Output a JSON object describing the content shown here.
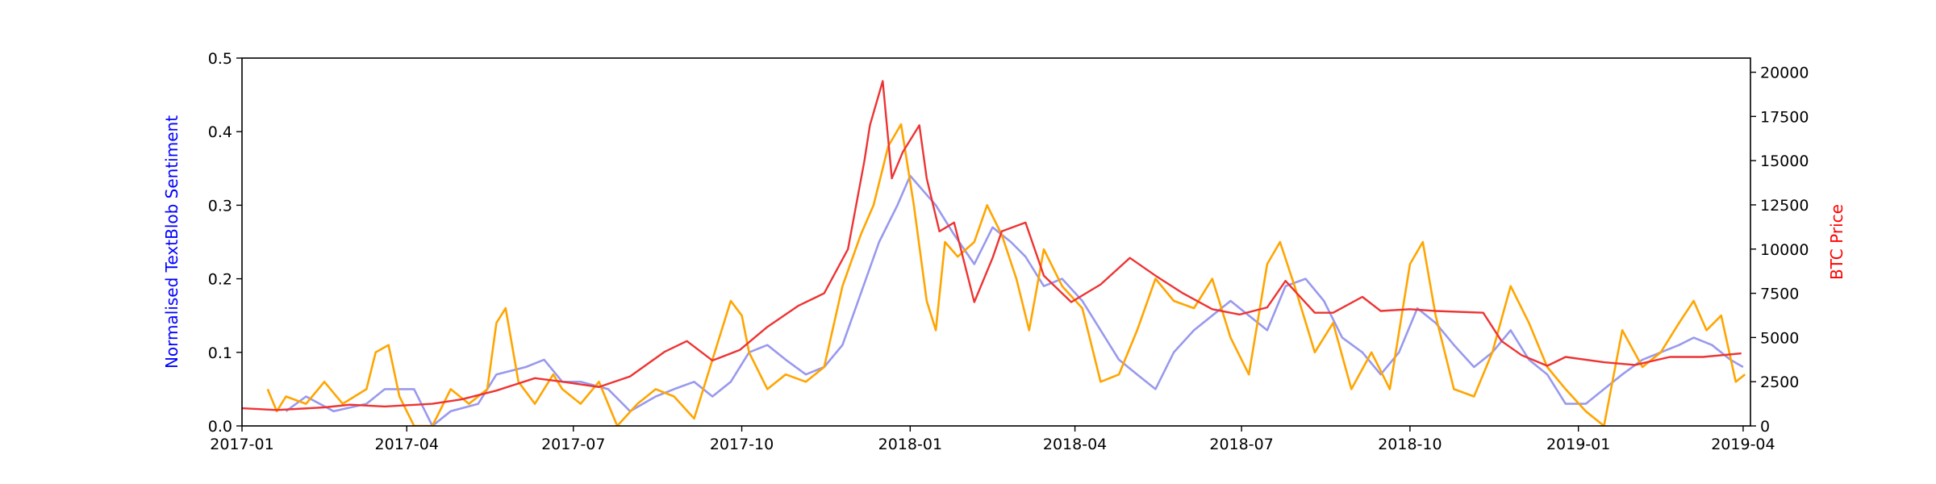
{
  "chart_data": {
    "type": "line",
    "title": "",
    "xlabel": "",
    "ylabel_left": "Normalised TextBlob Sentiment",
    "ylabel_right": "BTC Price",
    "x_range": [
      "2017-01-01",
      "2019-04-05"
    ],
    "ylim_left": [
      0,
      0.5
    ],
    "ylim_right": [
      0,
      20800
    ],
    "x_ticks": [
      "2017-01",
      "2017-04",
      "2017-07",
      "2017-10",
      "2018-01",
      "2018-04",
      "2018-07",
      "2018-10",
      "2019-01",
      "2019-04"
    ],
    "y_ticks_left": [
      "0.0",
      "0.1",
      "0.2",
      "0.3",
      "0.4",
      "0.5"
    ],
    "y_ticks_right": [
      "0",
      "2500",
      "5000",
      "7500",
      "10000",
      "12500",
      "15000",
      "17500",
      "20000"
    ],
    "grid": false,
    "colors": {
      "left_label": "#0000ff",
      "right_label": "#ff0000",
      "sentiment_smooth": "#9999ee",
      "sentiment_raw": "#ffa500",
      "btc_price": "#ee3333"
    },
    "series": [
      {
        "axis": "left",
        "color": "#9999ee",
        "points": [
          [
            "2017-01-25",
            0.02
          ],
          [
            "2017-02-05",
            0.04
          ],
          [
            "2017-02-20",
            0.02
          ],
          [
            "2017-03-10",
            0.03
          ],
          [
            "2017-03-20",
            0.05
          ],
          [
            "2017-04-05",
            0.05
          ],
          [
            "2017-04-15",
            0.0
          ],
          [
            "2017-04-25",
            0.02
          ],
          [
            "2017-05-10",
            0.03
          ],
          [
            "2017-05-20",
            0.07
          ],
          [
            "2017-06-05",
            0.08
          ],
          [
            "2017-06-15",
            0.09
          ],
          [
            "2017-06-25",
            0.06
          ],
          [
            "2017-07-05",
            0.06
          ],
          [
            "2017-07-20",
            0.05
          ],
          [
            "2017-08-01",
            0.02
          ],
          [
            "2017-08-15",
            0.04
          ],
          [
            "2017-08-25",
            0.05
          ],
          [
            "2017-09-05",
            0.06
          ],
          [
            "2017-09-15",
            0.04
          ],
          [
            "2017-09-25",
            0.06
          ],
          [
            "2017-10-05",
            0.1
          ],
          [
            "2017-10-15",
            0.11
          ],
          [
            "2017-10-25",
            0.09
          ],
          [
            "2017-11-05",
            0.07
          ],
          [
            "2017-11-15",
            0.08
          ],
          [
            "2017-11-25",
            0.11
          ],
          [
            "2017-12-05",
            0.18
          ],
          [
            "2017-12-15",
            0.25
          ],
          [
            "2017-12-25",
            0.3
          ],
          [
            "2018-01-01",
            0.34
          ],
          [
            "2018-01-08",
            0.32
          ],
          [
            "2018-01-15",
            0.3
          ],
          [
            "2018-01-25",
            0.26
          ],
          [
            "2018-02-05",
            0.22
          ],
          [
            "2018-02-15",
            0.27
          ],
          [
            "2018-02-25",
            0.25
          ],
          [
            "2018-03-05",
            0.23
          ],
          [
            "2018-03-15",
            0.19
          ],
          [
            "2018-03-25",
            0.2
          ],
          [
            "2018-04-05",
            0.17
          ],
          [
            "2018-04-15",
            0.13
          ],
          [
            "2018-04-25",
            0.09
          ],
          [
            "2018-05-05",
            0.07
          ],
          [
            "2018-05-15",
            0.05
          ],
          [
            "2018-05-25",
            0.1
          ],
          [
            "2018-06-05",
            0.13
          ],
          [
            "2018-06-15",
            0.15
          ],
          [
            "2018-06-25",
            0.17
          ],
          [
            "2018-07-05",
            0.15
          ],
          [
            "2018-07-15",
            0.13
          ],
          [
            "2018-07-25",
            0.19
          ],
          [
            "2018-08-05",
            0.2
          ],
          [
            "2018-08-15",
            0.17
          ],
          [
            "2018-08-25",
            0.12
          ],
          [
            "2018-09-05",
            0.1
          ],
          [
            "2018-09-15",
            0.07
          ],
          [
            "2018-09-25",
            0.1
          ],
          [
            "2018-10-05",
            0.16
          ],
          [
            "2018-10-15",
            0.14
          ],
          [
            "2018-10-25",
            0.11
          ],
          [
            "2018-11-05",
            0.08
          ],
          [
            "2018-11-15",
            0.1
          ],
          [
            "2018-11-25",
            0.13
          ],
          [
            "2018-12-05",
            0.09
          ],
          [
            "2018-12-15",
            0.07
          ],
          [
            "2018-12-25",
            0.03
          ],
          [
            "2019-01-05",
            0.03
          ],
          [
            "2019-01-15",
            0.05
          ],
          [
            "2019-01-25",
            0.07
          ],
          [
            "2019-02-05",
            0.09
          ],
          [
            "2019-02-15",
            0.1
          ],
          [
            "2019-02-25",
            0.11
          ],
          [
            "2019-03-05",
            0.12
          ],
          [
            "2019-03-15",
            0.11
          ],
          [
            "2019-03-25",
            0.09
          ],
          [
            "2019-04-01",
            0.08
          ]
        ]
      },
      {
        "axis": "left",
        "color": "#ffa500",
        "points": [
          [
            "2017-01-15",
            0.05
          ],
          [
            "2017-01-20",
            0.02
          ],
          [
            "2017-01-25",
            0.04
          ],
          [
            "2017-02-05",
            0.03
          ],
          [
            "2017-02-15",
            0.06
          ],
          [
            "2017-02-25",
            0.03
          ],
          [
            "2017-03-10",
            0.05
          ],
          [
            "2017-03-15",
            0.1
          ],
          [
            "2017-03-22",
            0.11
          ],
          [
            "2017-03-28",
            0.04
          ],
          [
            "2017-04-05",
            0.0
          ],
          [
            "2017-04-15",
            0.0
          ],
          [
            "2017-04-25",
            0.05
          ],
          [
            "2017-05-05",
            0.03
          ],
          [
            "2017-05-15",
            0.05
          ],
          [
            "2017-05-20",
            0.14
          ],
          [
            "2017-05-25",
            0.16
          ],
          [
            "2017-06-01",
            0.06
          ],
          [
            "2017-06-10",
            0.03
          ],
          [
            "2017-06-20",
            0.07
          ],
          [
            "2017-06-25",
            0.05
          ],
          [
            "2017-07-05",
            0.03
          ],
          [
            "2017-07-15",
            0.06
          ],
          [
            "2017-07-25",
            0.0
          ],
          [
            "2017-08-05",
            0.03
          ],
          [
            "2017-08-15",
            0.05
          ],
          [
            "2017-08-25",
            0.04
          ],
          [
            "2017-09-05",
            0.01
          ],
          [
            "2017-09-15",
            0.09
          ],
          [
            "2017-09-25",
            0.17
          ],
          [
            "2017-10-01",
            0.15
          ],
          [
            "2017-10-05",
            0.1
          ],
          [
            "2017-10-15",
            0.05
          ],
          [
            "2017-10-25",
            0.07
          ],
          [
            "2017-11-05",
            0.06
          ],
          [
            "2017-11-15",
            0.08
          ],
          [
            "2017-11-25",
            0.19
          ],
          [
            "2017-12-05",
            0.26
          ],
          [
            "2017-12-12",
            0.3
          ],
          [
            "2017-12-20",
            0.38
          ],
          [
            "2017-12-27",
            0.41
          ],
          [
            "2018-01-03",
            0.3
          ],
          [
            "2018-01-10",
            0.17
          ],
          [
            "2018-01-15",
            0.13
          ],
          [
            "2018-01-20",
            0.25
          ],
          [
            "2018-01-27",
            0.23
          ],
          [
            "2018-02-05",
            0.25
          ],
          [
            "2018-02-12",
            0.3
          ],
          [
            "2018-02-20",
            0.26
          ],
          [
            "2018-02-28",
            0.2
          ],
          [
            "2018-03-07",
            0.13
          ],
          [
            "2018-03-15",
            0.24
          ],
          [
            "2018-03-25",
            0.19
          ],
          [
            "2018-04-05",
            0.16
          ],
          [
            "2018-04-15",
            0.06
          ],
          [
            "2018-04-25",
            0.07
          ],
          [
            "2018-05-05",
            0.13
          ],
          [
            "2018-05-15",
            0.2
          ],
          [
            "2018-05-25",
            0.17
          ],
          [
            "2018-06-05",
            0.16
          ],
          [
            "2018-06-15",
            0.2
          ],
          [
            "2018-06-25",
            0.12
          ],
          [
            "2018-07-05",
            0.07
          ],
          [
            "2018-07-15",
            0.22
          ],
          [
            "2018-07-22",
            0.25
          ],
          [
            "2018-07-30",
            0.19
          ],
          [
            "2018-08-10",
            0.1
          ],
          [
            "2018-08-20",
            0.14
          ],
          [
            "2018-08-30",
            0.05
          ],
          [
            "2018-09-10",
            0.1
          ],
          [
            "2018-09-20",
            0.05
          ],
          [
            "2018-10-01",
            0.22
          ],
          [
            "2018-10-08",
            0.25
          ],
          [
            "2018-10-15",
            0.15
          ],
          [
            "2018-10-25",
            0.05
          ],
          [
            "2018-11-05",
            0.04
          ],
          [
            "2018-11-15",
            0.1
          ],
          [
            "2018-11-25",
            0.19
          ],
          [
            "2018-12-05",
            0.14
          ],
          [
            "2018-12-15",
            0.08
          ],
          [
            "2018-12-25",
            0.05
          ],
          [
            "2019-01-05",
            0.02
          ],
          [
            "2019-01-15",
            0.0
          ],
          [
            "2019-01-25",
            0.13
          ],
          [
            "2019-02-05",
            0.08
          ],
          [
            "2019-02-15",
            0.1
          ],
          [
            "2019-02-25",
            0.14
          ],
          [
            "2019-03-05",
            0.17
          ],
          [
            "2019-03-12",
            0.13
          ],
          [
            "2019-03-20",
            0.15
          ],
          [
            "2019-03-28",
            0.06
          ],
          [
            "2019-04-02",
            0.07
          ]
        ]
      },
      {
        "axis": "right",
        "color": "#ee3333",
        "points": [
          [
            "2017-01-01",
            1000
          ],
          [
            "2017-01-20",
            900
          ],
          [
            "2017-02-15",
            1050
          ],
          [
            "2017-03-01",
            1200
          ],
          [
            "2017-03-20",
            1100
          ],
          [
            "2017-04-15",
            1250
          ],
          [
            "2017-05-01",
            1500
          ],
          [
            "2017-05-20",
            2000
          ],
          [
            "2017-06-10",
            2700
          ],
          [
            "2017-06-25",
            2500
          ],
          [
            "2017-07-15",
            2200
          ],
          [
            "2017-08-01",
            2800
          ],
          [
            "2017-08-20",
            4200
          ],
          [
            "2017-09-01",
            4800
          ],
          [
            "2017-09-15",
            3700
          ],
          [
            "2017-09-30",
            4300
          ],
          [
            "2017-10-15",
            5600
          ],
          [
            "2017-11-01",
            6800
          ],
          [
            "2017-11-15",
            7500
          ],
          [
            "2017-11-28",
            10000
          ],
          [
            "2017-12-07",
            15000
          ],
          [
            "2017-12-10",
            17000
          ],
          [
            "2017-12-17",
            19500
          ],
          [
            "2017-12-22",
            14000
          ],
          [
            "2017-12-28",
            15500
          ],
          [
            "2018-01-06",
            17000
          ],
          [
            "2018-01-10",
            14000
          ],
          [
            "2018-01-17",
            11000
          ],
          [
            "2018-01-25",
            11500
          ],
          [
            "2018-02-05",
            7000
          ],
          [
            "2018-02-15",
            9500
          ],
          [
            "2018-02-20",
            11000
          ],
          [
            "2018-03-05",
            11500
          ],
          [
            "2018-03-15",
            8500
          ],
          [
            "2018-03-30",
            7000
          ],
          [
            "2018-04-15",
            8000
          ],
          [
            "2018-05-01",
            9500
          ],
          [
            "2018-05-15",
            8500
          ],
          [
            "2018-05-30",
            7500
          ],
          [
            "2018-06-15",
            6600
          ],
          [
            "2018-06-30",
            6300
          ],
          [
            "2018-07-15",
            6700
          ],
          [
            "2018-07-25",
            8200
          ],
          [
            "2018-08-10",
            6400
          ],
          [
            "2018-08-20",
            6400
          ],
          [
            "2018-09-05",
            7300
          ],
          [
            "2018-09-15",
            6500
          ],
          [
            "2018-10-01",
            6600
          ],
          [
            "2018-10-15",
            6500
          ],
          [
            "2018-11-10",
            6400
          ],
          [
            "2018-11-20",
            4800
          ],
          [
            "2018-12-01",
            4000
          ],
          [
            "2018-12-15",
            3400
          ],
          [
            "2018-12-25",
            3900
          ],
          [
            "2019-01-15",
            3600
          ],
          [
            "2019-02-01",
            3450
          ],
          [
            "2019-02-20",
            3900
          ],
          [
            "2019-03-10",
            3900
          ],
          [
            "2019-03-31",
            4100
          ]
        ]
      }
    ]
  }
}
